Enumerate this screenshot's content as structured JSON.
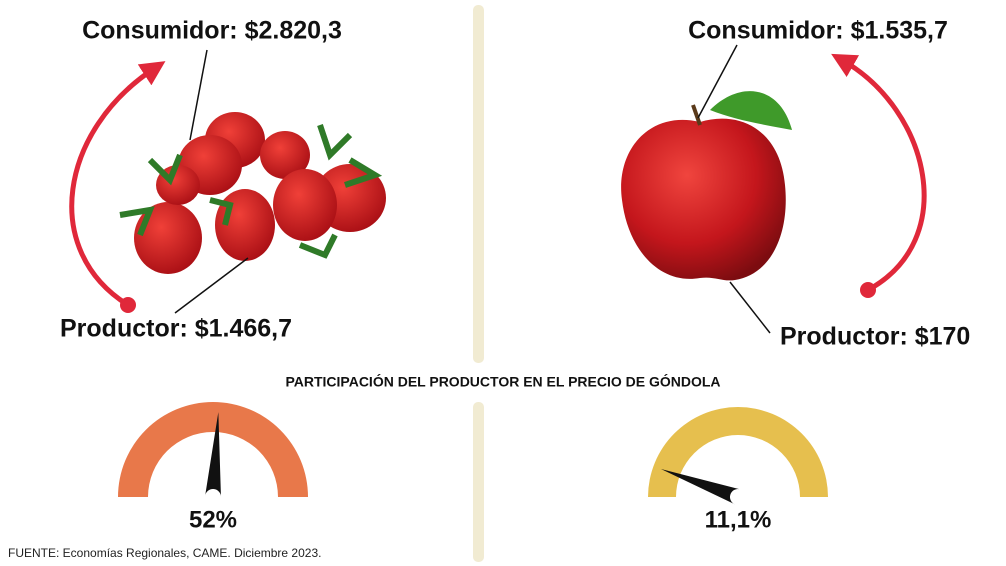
{
  "title": "PARTICIPACIÓN DEL PRODUCTOR EN EL PRECIO DE GÓNDOLA",
  "left": {
    "consumer": "Consumidor: $2.820,3",
    "producer": "Productor: $1.466,7",
    "gauge": {
      "value": 52,
      "label": "52%",
      "range": [
        0,
        100
      ],
      "color": "#e8784a"
    }
  },
  "right": {
    "consumer": "Consumidor: $1.535,7",
    "producer": "Productor: $170",
    "gauge": {
      "value": 11.1,
      "label": "11,1%",
      "range": [
        0,
        100
      ],
      "color": "#e6bf4e"
    }
  },
  "source": "FUENTE: Economías Regionales, CAME. Diciembre 2023."
}
